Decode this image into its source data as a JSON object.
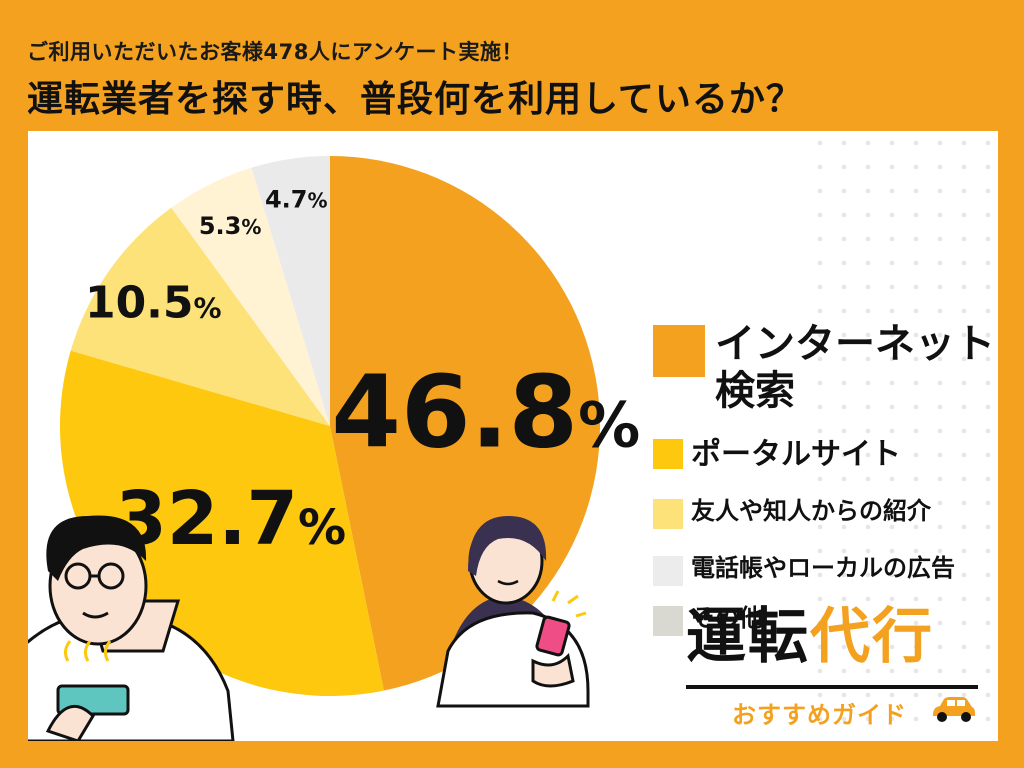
{
  "header": {
    "subtitle": "ご利用いただいたお客様478人にアンケート実施！",
    "title": "運転業者を探す時、普段何を利用しているか？"
  },
  "chart_data": {
    "type": "pie",
    "categories": [
      "インターネット検索",
      "ポータルサイト",
      "友人や知人からの紹介",
      "電話帳やローカルの広告",
      "その他"
    ],
    "values": [
      46.8,
      32.7,
      10.5,
      5.3,
      4.7
    ],
    "labels": [
      "46.8",
      "32.7",
      "10.5",
      "5.3",
      "4.7"
    ],
    "unit": "%",
    "colors": [
      "#f3a11e",
      "#fdc80d",
      "#fde27a",
      "#fff3d4",
      "#eaeaea"
    ],
    "legend_colors": [
      "#f3a11e",
      "#fdc80d",
      "#fde27a",
      "#ececec",
      "#d9d9d2"
    ],
    "legend_entries": [
      "インターネット\n検索",
      "ポータルサイト",
      "友人や知人からの紹介",
      "電話帳やローカルの広告",
      "その他"
    ],
    "legend_placement": "right"
  },
  "logo": {
    "main_a": "運転",
    "main_b": "代行",
    "sub": "おすすめガイド"
  }
}
